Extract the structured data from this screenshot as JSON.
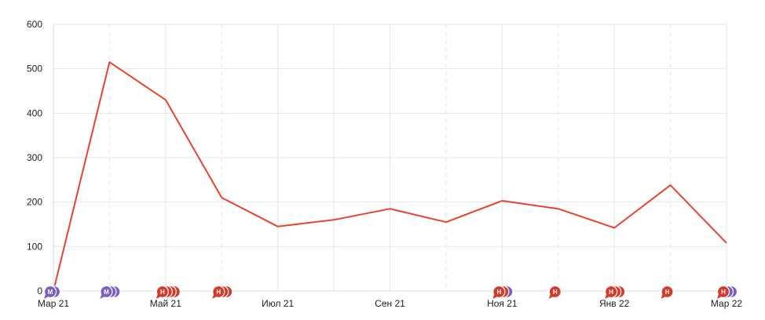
{
  "chart_data": {
    "type": "line",
    "title": "",
    "xlabel": "",
    "ylabel": "",
    "ylim": [
      0,
      600
    ],
    "yticks": [
      "0",
      "100",
      "200",
      "300",
      "400",
      "500",
      "600"
    ],
    "x": [
      "2021-03",
      "2021-04",
      "2021-05",
      "2021-06",
      "2021-07",
      "2021-08",
      "2021-09",
      "2021-10",
      "2021-11",
      "2021-12",
      "2022-01",
      "2022-02",
      "2022-03"
    ],
    "xtick_labels": [
      {
        "month": "2021-03",
        "label": "Мар 21"
      },
      {
        "month": "2021-05",
        "label": "Май 21"
      },
      {
        "month": "2021-07",
        "label": "Июл 21"
      },
      {
        "month": "2021-09",
        "label": "Сен 21"
      },
      {
        "month": "2021-11",
        "label": "Ноя 21"
      },
      {
        "month": "2022-01",
        "label": "Янв 22"
      },
      {
        "month": "2022-03",
        "label": "Мар 22"
      }
    ],
    "series": [
      {
        "color": "#e8432e",
        "values": [
          0,
          515,
          430,
          210,
          145,
          160,
          185,
          155,
          203,
          185,
          142,
          238,
          108
        ]
      }
    ],
    "dashed_gridlines_at": [
      "2021-04",
      "2021-06",
      "2021-10",
      "2021-12",
      "2022-02"
    ],
    "grid": true,
    "event_markers": [
      {
        "month": "2021-03",
        "letters": [
          "М",
          "М"
        ]
      },
      {
        "month": "2021-04",
        "letters": [
          "М",
          "М",
          "М"
        ]
      },
      {
        "month": "2021-05",
        "letters": [
          "Н",
          "Н",
          "Н",
          "Н"
        ]
      },
      {
        "month": "2021-06",
        "letters": [
          "Н",
          "Н",
          "Н"
        ]
      },
      {
        "month": "2021-11",
        "letters": [
          "Н",
          "Н",
          "М"
        ]
      },
      {
        "month": "2021-12",
        "letters": [
          "Н"
        ]
      },
      {
        "month": "2022-01",
        "letters": [
          "Н",
          "Н",
          "Н"
        ]
      },
      {
        "month": "2022-02",
        "letters": [
          "Н"
        ]
      },
      {
        "month": "2022-03",
        "letters": [
          "Н",
          "М",
          "М"
        ]
      }
    ],
    "marker_colors": {
      "Н": "#d63a2a",
      "М": "#7a5ec2"
    }
  }
}
